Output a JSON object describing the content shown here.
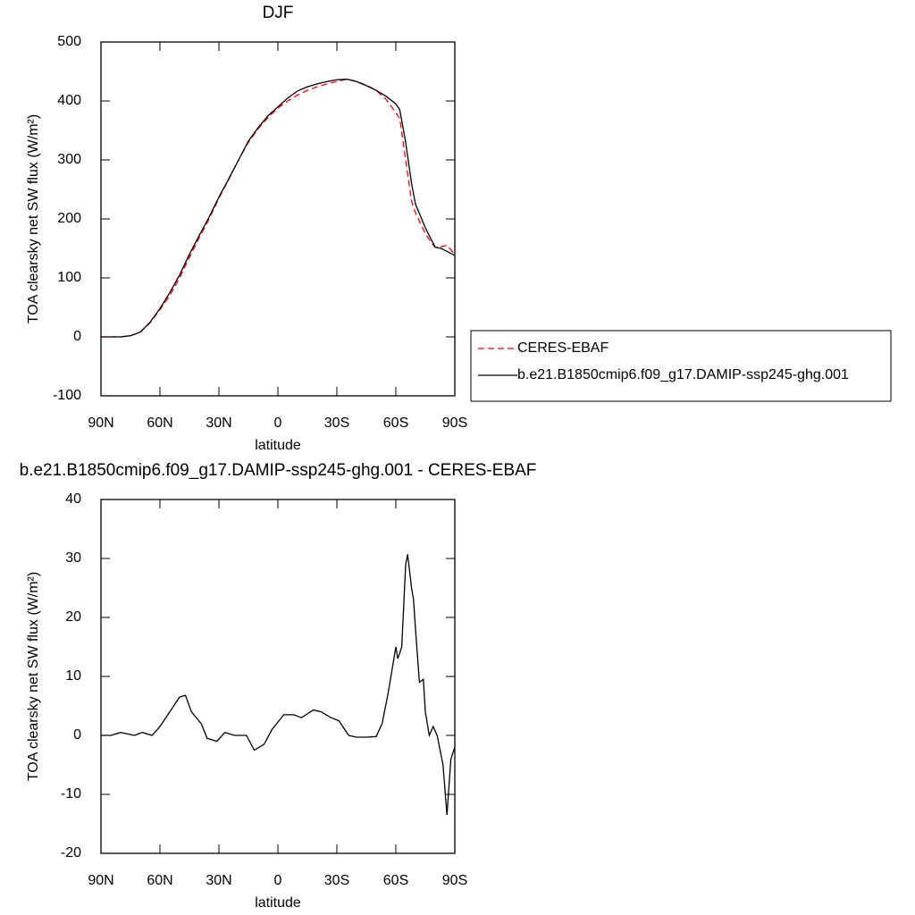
{
  "chart_data": [
    {
      "type": "line",
      "title": "DJF",
      "xlabel": "latitude",
      "ylabel": "TOA clearsky net SW flux (W/m²)",
      "x": [
        90,
        85,
        80,
        75,
        70,
        65,
        60,
        55,
        50,
        45,
        40,
        35,
        30,
        25,
        20,
        15,
        10,
        5,
        0,
        -5,
        -10,
        -15,
        -20,
        -25,
        -30,
        -35,
        -40,
        -45,
        -50,
        -55,
        -60,
        -62,
        -65,
        -68,
        -70,
        -75,
        -78,
        -80,
        -83,
        -86,
        -90
      ],
      "xlim": [
        90,
        -90
      ],
      "xticks": [
        {
          "value": 90,
          "label": "90N"
        },
        {
          "value": 60,
          "label": "60N"
        },
        {
          "value": 30,
          "label": "30N"
        },
        0,
        {
          "value": -30,
          "label": "30S"
        },
        {
          "value": -60,
          "label": "60S"
        },
        {
          "value": -90,
          "label": "90S"
        }
      ],
      "ylim": [
        -100,
        500
      ],
      "yticks": [
        -100,
        0,
        100,
        200,
        300,
        400,
        500
      ],
      "legend": "right",
      "series": [
        {
          "name": "CERES-EBAF",
          "color": "#ff0000",
          "dashed": true,
          "values": [
            0,
            0,
            0,
            2,
            8,
            24,
            46,
            70,
            100,
            135,
            168,
            200,
            235,
            267,
            300,
            330,
            353,
            372,
            388,
            400,
            410,
            418,
            424,
            429,
            433,
            437,
            433,
            427,
            418,
            403,
            380,
            370,
            300,
            230,
            210,
            175,
            160,
            152,
            153,
            155,
            140
          ]
        },
        {
          "name": "b.e21.B1850cmip6.f09_g17.DAMIP-ssp245-ghg.001",
          "color": "#000000",
          "dashed": false,
          "values": [
            0,
            0,
            0,
            2,
            8,
            25,
            48,
            75,
            105,
            140,
            172,
            203,
            237,
            268,
            300,
            332,
            355,
            375,
            390,
            405,
            417,
            424,
            429,
            433,
            436,
            437,
            433,
            426,
            418,
            408,
            395,
            385,
            330,
            260,
            225,
            185,
            165,
            152,
            150,
            145,
            138
          ]
        }
      ]
    },
    {
      "type": "line",
      "title": "b.e21.B1850cmip6.f09_g17.DAMIP-ssp245-ghg.001 - CERES-EBAF",
      "xlabel": "latitude",
      "ylabel": "TOA clearsky net SW flux (W/m²)",
      "x": [
        90,
        85,
        80,
        73,
        69,
        64,
        60,
        55,
        50,
        47,
        44,
        39,
        36,
        31,
        27,
        22,
        16,
        12,
        7,
        3,
        -3,
        -8,
        -12,
        -18,
        -22,
        -27,
        -31,
        -36,
        -40,
        -45,
        -50,
        -53,
        -56,
        -60,
        -61,
        -63,
        -65,
        -66,
        -68,
        -69,
        -70,
        -72,
        -74,
        -75,
        -77,
        -79,
        -81,
        -84,
        -86,
        -88,
        -90
      ],
      "xlim": [
        90,
        -90
      ],
      "xticks": [
        {
          "value": 90,
          "label": "90N"
        },
        {
          "value": 60,
          "label": "60N"
        },
        {
          "value": 30,
          "label": "30N"
        },
        0,
        {
          "value": -30,
          "label": "30S"
        },
        {
          "value": -60,
          "label": "60S"
        },
        {
          "value": -90,
          "label": "90S"
        }
      ],
      "ylim": [
        -20,
        40
      ],
      "yticks": [
        -20,
        -10,
        0,
        10,
        20,
        30,
        40
      ],
      "series": [
        {
          "color": "#000000",
          "dashed": false,
          "values": [
            0,
            0,
            0.5,
            0,
            0.5,
            0,
            1.5,
            4,
            6.5,
            6.8,
            4,
            2,
            -0.5,
            -1,
            0.5,
            0,
            0,
            -2.5,
            -1.5,
            1,
            3.5,
            3.5,
            3,
            4.3,
            4,
            3,
            2.5,
            0,
            -0.3,
            -0.3,
            -0.2,
            2,
            7,
            15,
            13,
            15,
            29,
            30.7,
            25,
            23,
            18,
            9,
            9.5,
            4,
            0,
            1.5,
            0,
            -5,
            -13.5,
            -4,
            -2
          ]
        }
      ]
    }
  ]
}
